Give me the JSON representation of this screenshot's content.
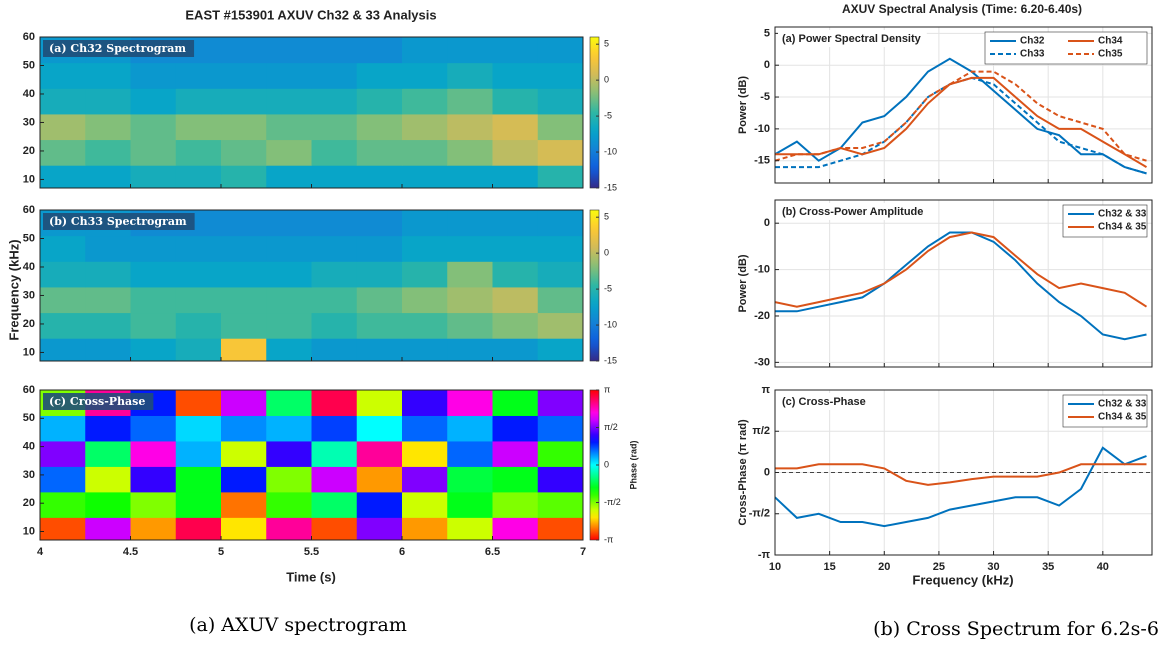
{
  "figures": [
    {
      "title": "EAST #153901 AXUV Ch32 & 33 Analysis",
      "xlabel": "Time (s)",
      "ylabel": "Frequency (kHz)",
      "caption": "(a) AXUV spectrogram"
    },
    {
      "title": "AXUV Spectral Analysis (Time: 6.20-6.40s)",
      "xlabel": "Frequency (kHz)",
      "caption": "(b) Cross Spectrum for 6.2s-6.4s"
    }
  ],
  "chart_data": [
    {
      "type": "heatmap",
      "title": "(a) Ch32 Spectrogram",
      "colormap": "parula",
      "xlim": [
        4,
        7
      ],
      "xticks": [
        4,
        4.5,
        5,
        5.5,
        6,
        6.5,
        7
      ],
      "ylim": [
        7,
        60
      ],
      "yticks": [
        10,
        20,
        30,
        40,
        50,
        60
      ],
      "xbins": [
        4,
        4.25,
        4.5,
        4.75,
        5,
        5.25,
        5.5,
        5.75,
        6,
        6.25,
        6.5,
        6.75,
        7
      ],
      "ybins": [
        7,
        15,
        24,
        33,
        42,
        51,
        60
      ],
      "z": [
        [
          -7,
          -7,
          -6,
          -6,
          -5,
          -7,
          -7,
          -7,
          -7,
          -7,
          -7,
          -5
        ],
        [
          -3,
          -4,
          -3,
          -4,
          -3,
          -2,
          -4,
          -3,
          -3,
          -2,
          0,
          1
        ],
        [
          -1,
          -2,
          -3,
          -2,
          -2,
          -3,
          -3,
          -2,
          -1,
          0,
          1,
          -2
        ],
        [
          -6,
          -6,
          -7,
          -6,
          -6,
          -6,
          -6,
          -5,
          -4,
          -3,
          -5,
          -6
        ],
        [
          -7,
          -7,
          -8,
          -8,
          -8,
          -8,
          -8,
          -7,
          -7,
          -6,
          -7,
          -7
        ],
        [
          -8,
          -8,
          -9,
          -9,
          -9,
          -9,
          -9,
          -9,
          -8,
          -8,
          -8,
          -8
        ]
      ],
      "clim": [
        -15,
        6
      ],
      "cticks": [
        -15,
        -10,
        -5,
        0,
        5
      ]
    },
    {
      "type": "heatmap",
      "title": "(b) Ch33 Spectrogram",
      "colormap": "parula",
      "xlim": [
        4,
        7
      ],
      "xticks": [
        4,
        4.5,
        5,
        5.5,
        6,
        6.5,
        7
      ],
      "ylim": [
        7,
        60
      ],
      "yticks": [
        10,
        20,
        30,
        40,
        50,
        60
      ],
      "xbins": [
        4,
        4.25,
        4.5,
        4.75,
        5,
        5.25,
        5.5,
        5.75,
        6,
        6.25,
        6.5,
        6.75,
        7
      ],
      "ybins": [
        7,
        15,
        24,
        33,
        42,
        51,
        60
      ],
      "z": [
        [
          -8,
          -8,
          -7,
          -6,
          3,
          -7,
          -8,
          -8,
          -8,
          -8,
          -8,
          -7
        ],
        [
          -5,
          -5,
          -4,
          -5,
          -4,
          -4,
          -5,
          -4,
          -4,
          -3,
          -2,
          -1
        ],
        [
          -3,
          -3,
          -4,
          -4,
          -4,
          -4,
          -4,
          -3,
          -2,
          -1,
          0,
          -3
        ],
        [
          -6,
          -6,
          -7,
          -7,
          -7,
          -7,
          -6,
          -6,
          -5,
          -2,
          -5,
          -6
        ],
        [
          -7,
          -8,
          -8,
          -8,
          -8,
          -8,
          -8,
          -8,
          -7,
          -7,
          -7,
          -7
        ],
        [
          -8,
          -8,
          -9,
          -9,
          -9,
          -9,
          -9,
          -9,
          -8,
          -8,
          -8,
          -8
        ]
      ],
      "clim": [
        -15,
        6
      ],
      "cticks": [
        -15,
        -10,
        -5,
        0,
        5
      ]
    },
    {
      "type": "heatmap",
      "title": "(c) Cross-Phase",
      "colormap": "hsv",
      "xlim": [
        4,
        7
      ],
      "xticks": [
        4,
        4.5,
        5,
        5.5,
        6,
        6.5,
        7
      ],
      "ylim": [
        7,
        60
      ],
      "yticks": [
        10,
        20,
        30,
        40,
        50,
        60
      ],
      "xbins": [
        4,
        4.25,
        4.5,
        4.75,
        5,
        5.25,
        5.5,
        5.75,
        6,
        6.25,
        6.5,
        6.75,
        7
      ],
      "ybins": [
        7,
        15,
        24,
        33,
        42,
        51,
        60
      ],
      "z": [
        [
          -0.9,
          0.6,
          -0.8,
          0.9,
          -0.7,
          0.8,
          -0.9,
          0.5,
          -0.8,
          -0.6,
          0.7,
          -0.9
        ],
        [
          -0.4,
          -0.35,
          -0.5,
          -0.3,
          -0.85,
          -0.4,
          -0.2,
          0.3,
          -0.6,
          -0.3,
          -0.5,
          -0.45
        ],
        [
          0.2,
          -0.6,
          0.4,
          -0.3,
          0.3,
          -0.5,
          0.6,
          -0.8,
          0.5,
          -0.25,
          -0.3,
          0.4
        ],
        [
          0.5,
          -0.2,
          0.7,
          0.1,
          -0.6,
          0.4,
          -0.1,
          0.8,
          -0.7,
          0.2,
          0.6,
          -0.4
        ],
        [
          0.1,
          0.3,
          0.2,
          0.05,
          0.15,
          0.1,
          0.25,
          0.0,
          0.2,
          0.1,
          0.3,
          0.2
        ],
        [
          -0.5,
          0.8,
          0.3,
          -0.9,
          0.6,
          -0.2,
          0.9,
          -0.6,
          0.4,
          0.7,
          -0.3,
          0.5
        ]
      ],
      "clim": [
        -1,
        1
      ],
      "clabel": "Phase (rad)",
      "cticks": [
        {
          "value": -1,
          "label": "-π"
        },
        {
          "value": -0.5,
          "label": "-π/2"
        },
        0,
        {
          "value": 0.5,
          "label": "π/2"
        },
        {
          "value": 1,
          "label": "π"
        }
      ]
    },
    {
      "type": "line",
      "title": "(a) Power Spectral Density",
      "ylabel": "Power (dB)",
      "x": [
        10,
        12,
        14,
        16,
        18,
        20,
        22,
        24,
        26,
        28,
        30,
        32,
        34,
        36,
        38,
        40,
        42,
        44
      ],
      "xlim": [
        10,
        44.5
      ],
      "xticks": [
        10,
        15,
        20,
        25,
        30,
        35,
        40
      ],
      "ylim": [
        -18.5,
        6
      ],
      "yticks": [
        -15,
        -10,
        -5,
        0,
        5
      ],
      "grid": true,
      "legend": "upper right",
      "legend_columns": 2,
      "series": [
        {
          "name": "Ch32",
          "color": "#0072bd",
          "dash": false,
          "values": [
            -14,
            -12,
            -15,
            -13,
            -9,
            -8,
            -5,
            -1,
            1,
            -1,
            -4,
            -7,
            -10,
            -11,
            -14,
            -14,
            -16,
            -17
          ]
        },
        {
          "name": "Ch33",
          "color": "#0072bd",
          "dash": true,
          "values": [
            -16,
            -16,
            -16,
            -15,
            -14,
            -12,
            -9,
            -5,
            -3,
            -2,
            -3,
            -6,
            -9,
            -12,
            -13,
            -14,
            -16,
            -17
          ]
        },
        {
          "name": "Ch34",
          "color": "#d95319",
          "dash": false,
          "values": [
            -14,
            -14,
            -14,
            -13,
            -14,
            -13,
            -10,
            -6,
            -3,
            -2,
            -2,
            -5,
            -8,
            -10,
            -10,
            -12,
            -14,
            -16
          ]
        },
        {
          "name": "Ch35",
          "color": "#d95319",
          "dash": true,
          "values": [
            -15,
            -14,
            -14,
            -13,
            -13,
            -12,
            -9,
            -5,
            -3,
            -1,
            -1,
            -3,
            -6,
            -8,
            -9,
            -10,
            -14,
            -15
          ]
        }
      ]
    },
    {
      "type": "line",
      "title": "(b) Cross-Power Amplitude",
      "ylabel": "Power (dB)",
      "x": [
        10,
        12,
        14,
        16,
        18,
        20,
        22,
        24,
        26,
        28,
        30,
        32,
        34,
        36,
        38,
        40,
        42,
        44
      ],
      "xlim": [
        10,
        44.5
      ],
      "xticks": [
        10,
        15,
        20,
        25,
        30,
        35,
        40
      ],
      "ylim": [
        -31,
        5
      ],
      "yticks": [
        -30,
        -20,
        -10,
        0
      ],
      "grid": true,
      "legend": "upper right",
      "legend_columns": 1,
      "series": [
        {
          "name": "Ch32 & 33",
          "color": "#0072bd",
          "dash": false,
          "values": [
            -19,
            -19,
            -18,
            -17,
            -16,
            -13,
            -9,
            -5,
            -2,
            -2,
            -4,
            -8,
            -13,
            -17,
            -20,
            -24,
            -25,
            -24
          ]
        },
        {
          "name": "Ch34 & 35",
          "color": "#d95319",
          "dash": false,
          "values": [
            -17,
            -18,
            -17,
            -16,
            -15,
            -13,
            -10,
            -6,
            -3,
            -2,
            -3,
            -7,
            -11,
            -14,
            -13,
            -14,
            -15,
            -18
          ]
        }
      ]
    },
    {
      "type": "line",
      "title": "(c) Cross-Phase",
      "ylabel": "Cross-Phase (π rad)",
      "x": [
        10,
        12,
        14,
        16,
        18,
        20,
        22,
        24,
        26,
        28,
        30,
        32,
        34,
        36,
        38,
        40,
        42,
        44
      ],
      "xlim": [
        10,
        44.5
      ],
      "xticks": [
        10,
        15,
        20,
        25,
        30,
        35,
        40
      ],
      "ylim": [
        -1,
        1
      ],
      "yticks": [
        {
          "value": -1,
          "label": "-π"
        },
        {
          "value": -0.5,
          "label": "-π/2"
        },
        0,
        {
          "value": 0.5,
          "label": "π/2"
        },
        {
          "value": 1,
          "label": "π"
        }
      ],
      "grid": true,
      "zero_line": true,
      "legend": "upper right",
      "legend_columns": 1,
      "series": [
        {
          "name": "Ch32 & 33",
          "color": "#0072bd",
          "dash": false,
          "values": [
            -0.3,
            -0.55,
            -0.5,
            -0.6,
            -0.6,
            -0.65,
            -0.6,
            -0.55,
            -0.45,
            -0.4,
            -0.35,
            -0.3,
            -0.3,
            -0.4,
            -0.2,
            0.3,
            0.1,
            0.2
          ]
        },
        {
          "name": "Ch34 & 35",
          "color": "#d95319",
          "dash": false,
          "values": [
            0.05,
            0.05,
            0.1,
            0.1,
            0.1,
            0.05,
            -0.1,
            -0.15,
            -0.12,
            -0.08,
            -0.05,
            -0.05,
            -0.05,
            0,
            0.1,
            0.1,
            0.1,
            0.1
          ]
        }
      ]
    }
  ]
}
